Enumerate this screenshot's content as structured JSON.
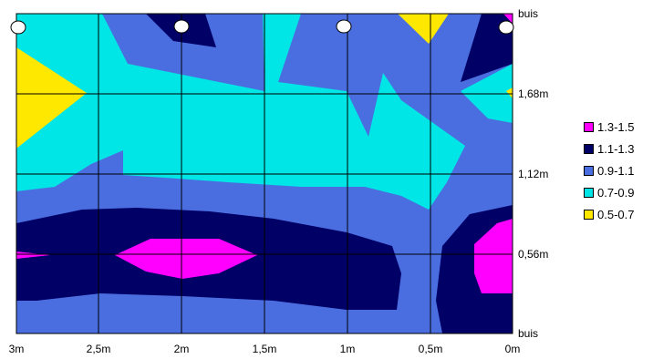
{
  "chart_data": {
    "type": "contour",
    "x_ticks": [
      "3m",
      "2,5m",
      "2m",
      "1,5m",
      "1m",
      "0,5m",
      "0m"
    ],
    "y_ticks": [
      "buis",
      "1,68m",
      "1,12m",
      "0,56m",
      "buis"
    ],
    "legend": [
      {
        "label": "1.3-1.5",
        "color": "#ff00ff"
      },
      {
        "label": "1.1-1.3",
        "color": "#000066"
      },
      {
        "label": "0.9-1.1",
        "color": "#4a6ee0"
      },
      {
        "label": "0.7-0.9",
        "color": "#00e5e5"
      },
      {
        "label": "0.5-0.7",
        "color": "#ffe800"
      }
    ],
    "pipe_markers_x": [
      "3m",
      "2m",
      "1m",
      "0m"
    ],
    "grid": true,
    "legend_position": "right"
  }
}
